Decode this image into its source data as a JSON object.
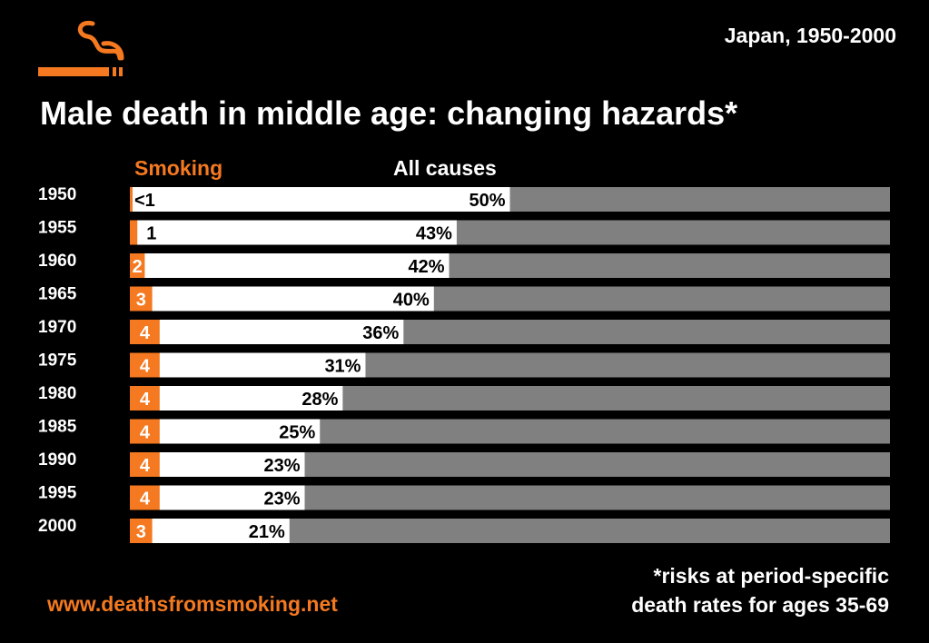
{
  "header": {
    "country_period": "Japan, 1950-2000",
    "title": "Male death in middle age: changing hazards*"
  },
  "logo": {
    "icon": "cigarette-smoke-icon",
    "color": "#f47920"
  },
  "colors": {
    "smoking": "#f47920",
    "all_causes": "#ffffff",
    "remainder": "#808080",
    "background": "#000000"
  },
  "chart_data": {
    "type": "bar",
    "orientation": "horizontal",
    "stacked": true,
    "series_labels": {
      "smoking": "Smoking",
      "all_causes": "All causes"
    },
    "categories": [
      "1950",
      "1955",
      "1960",
      "1965",
      "1970",
      "1975",
      "1980",
      "1985",
      "1990",
      "1995",
      "2000"
    ],
    "smoking_labels": [
      "<1",
      "1",
      "2",
      "3",
      "4",
      "4",
      "4",
      "4",
      "4",
      "4",
      "3"
    ],
    "smoking_values": [
      0.3,
      1,
      2,
      3,
      4,
      4,
      4,
      4,
      4,
      4,
      3
    ],
    "all_causes_labels": [
      "50%",
      "43%",
      "42%",
      "40%",
      "36%",
      "31%",
      "28%",
      "25%",
      "23%",
      "23%",
      "21%"
    ],
    "all_causes_values": [
      50,
      43,
      42,
      40,
      36,
      31,
      28,
      25,
      23,
      23,
      21
    ],
    "xlim": [
      0,
      100
    ],
    "units": "%"
  },
  "footnote": {
    "line1": "*risks at period-specific",
    "line2": "death rates for ages 35-69"
  },
  "website": "www.deathsfromsmoking.net"
}
